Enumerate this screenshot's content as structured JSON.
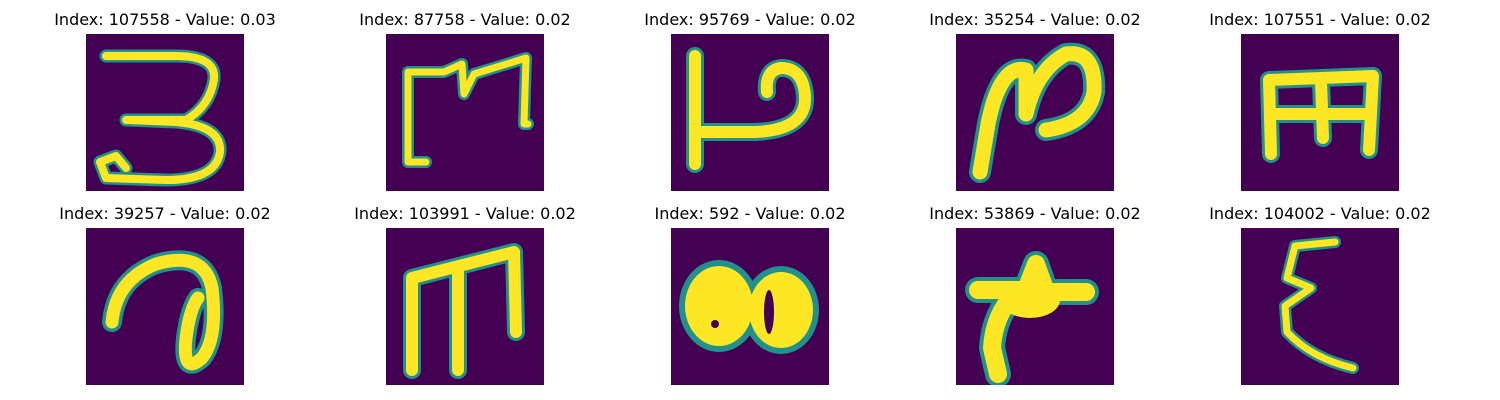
{
  "colors": {
    "background": "#440154",
    "foreground": "#fde725",
    "edge": "#21918c"
  },
  "panels": [
    {
      "title": "Index: 107558 - Value: 0.03",
      "glyph": "three-like-glyph-icon"
    },
    {
      "title": "Index: 87758 - Value: 0.02",
      "glyph": "bracket-m-glyph-icon"
    },
    {
      "title": "Index: 95769 - Value: 0.02",
      "glyph": "hooked-p-glyph-icon"
    },
    {
      "title": "Index: 35254 - Value: 0.02",
      "glyph": "loop-n-glyph-icon"
    },
    {
      "title": "Index: 107551 - Value: 0.02",
      "glyph": "square-e-glyph-icon"
    },
    {
      "title": "Index: 39257 - Value: 0.02",
      "glyph": "spiral-glyph-icon"
    },
    {
      "title": "Index: 103991 - Value: 0.02",
      "glyph": "m-glyph-icon"
    },
    {
      "title": "Index: 592 - Value: 0.02",
      "glyph": "double-blob-glyph-icon"
    },
    {
      "title": "Index: 53869 - Value: 0.02",
      "glyph": "star-blob-glyph-icon"
    },
    {
      "title": "Index: 104002 - Value: 0.02",
      "glyph": "epsilon-glyph-icon"
    }
  ]
}
